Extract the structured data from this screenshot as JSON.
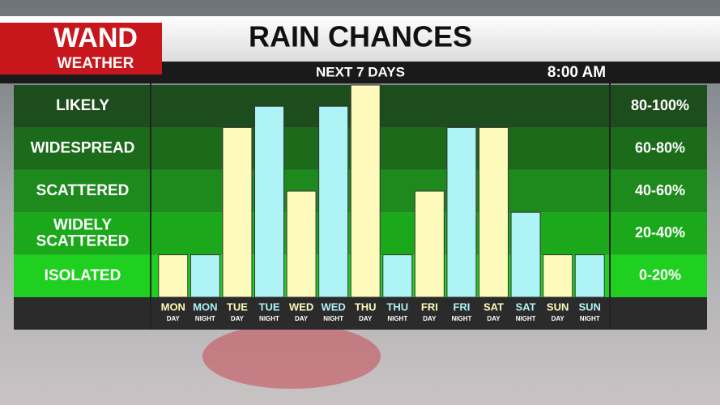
{
  "chart_data": {
    "type": "bar",
    "logo": {
      "top": "WAND",
      "bottom": "WEATHER"
    },
    "title": "RAIN CHANCES",
    "subtitle": "NEXT 7 DAYS",
    "time": "8:00 AM",
    "categories": [
      {
        "day": "MON",
        "part": "DAY"
      },
      {
        "day": "MON",
        "part": "NIGHT"
      },
      {
        "day": "TUE",
        "part": "DAY"
      },
      {
        "day": "TUE",
        "part": "NIGHT"
      },
      {
        "day": "WED",
        "part": "DAY"
      },
      {
        "day": "WED",
        "part": "NIGHT"
      },
      {
        "day": "THU",
        "part": "DAY"
      },
      {
        "day": "THU",
        "part": "NIGHT"
      },
      {
        "day": "FRI",
        "part": "DAY"
      },
      {
        "day": "FRI",
        "part": "NIGHT"
      },
      {
        "day": "SAT",
        "part": "DAY"
      },
      {
        "day": "SAT",
        "part": "NIGHT"
      },
      {
        "day": "SUN",
        "part": "DAY"
      },
      {
        "day": "SUN",
        "part": "NIGHT"
      }
    ],
    "values": [
      20,
      20,
      80,
      90,
      50,
      90,
      100,
      20,
      50,
      80,
      80,
      40,
      20,
      20
    ],
    "bar_colors": [
      "#fdfabb",
      "#aef3f6"
    ],
    "ylim": [
      0,
      100
    ],
    "bands": [
      {
        "label": [
          "LIKELY"
        ],
        "range_label": "80-100%",
        "from": 80,
        "to": 100,
        "color": "#1d4d1c"
      },
      {
        "label": [
          "WIDESPREAD"
        ],
        "range_label": "60-80%",
        "from": 60,
        "to": 80,
        "color": "#1b6b1b"
      },
      {
        "label": [
          "SCATTERED"
        ],
        "range_label": "40-60%",
        "from": 40,
        "to": 60,
        "color": "#1e8a1e"
      },
      {
        "label": [
          "WIDELY",
          "SCATTERED"
        ],
        "range_label": "20-40%",
        "from": 20,
        "to": 40,
        "color": "#1ba91b"
      },
      {
        "label": [
          "ISOLATED"
        ],
        "range_label": "0-20%",
        "from": 0,
        "to": 20,
        "color": "#20d020"
      }
    ]
  }
}
